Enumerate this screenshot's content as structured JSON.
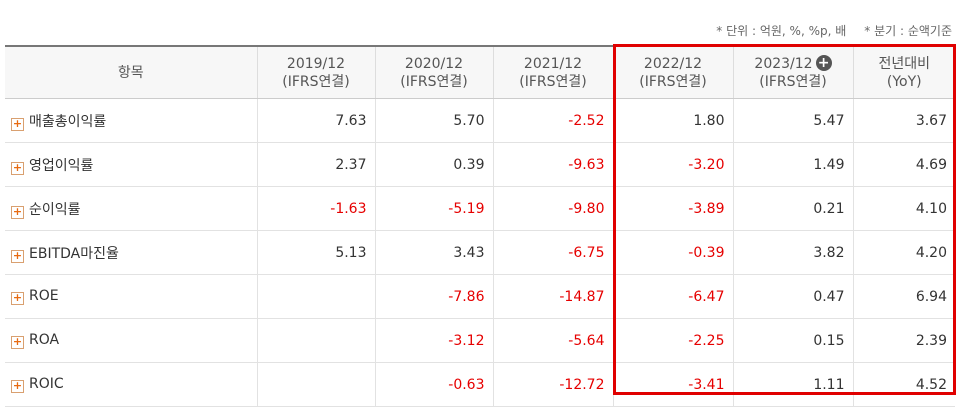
{
  "notes": [
    "* 단위 : 억원, %, %p, 배",
    "* 분기 : 순액기준"
  ],
  "table": {
    "header": [
      [
        "항목"
      ],
      [
        "2019/12",
        "(IFRS연결)"
      ],
      [
        "2020/12",
        "(IFRS연결)"
      ],
      [
        "2021/12",
        "(IFRS연결)"
      ],
      [
        "2022/12",
        "(IFRS연결)"
      ],
      [
        "2023/12",
        "(IFRS연결)"
      ],
      [
        "전년대비",
        "(YoY)"
      ]
    ],
    "rows": [
      {
        "label": "매출총이익률",
        "values": [
          "7.63",
          "5.70",
          "-2.52",
          "1.80",
          "5.47",
          "3.67"
        ]
      },
      {
        "label": "영업이익률",
        "values": [
          "2.37",
          "0.39",
          "-9.63",
          "-3.20",
          "1.49",
          "4.69"
        ]
      },
      {
        "label": "순이익률",
        "values": [
          "-1.63",
          "-5.19",
          "-9.80",
          "-3.89",
          "0.21",
          "4.10"
        ]
      },
      {
        "label": "EBITDA마진율",
        "values": [
          "5.13",
          "3.43",
          "-6.75",
          "-0.39",
          "3.82",
          "4.20"
        ]
      },
      {
        "label": "ROE",
        "values": [
          null,
          "-7.86",
          "-14.87",
          "-6.47",
          "0.47",
          "6.94"
        ]
      },
      {
        "label": "ROA",
        "values": [
          null,
          "-3.12",
          "-5.64",
          "-2.25",
          "0.15",
          "2.39"
        ]
      },
      {
        "label": "ROIC",
        "values": [
          null,
          "-0.63",
          "-12.72",
          "-3.41",
          "1.11",
          "4.52"
        ]
      }
    ]
  }
}
